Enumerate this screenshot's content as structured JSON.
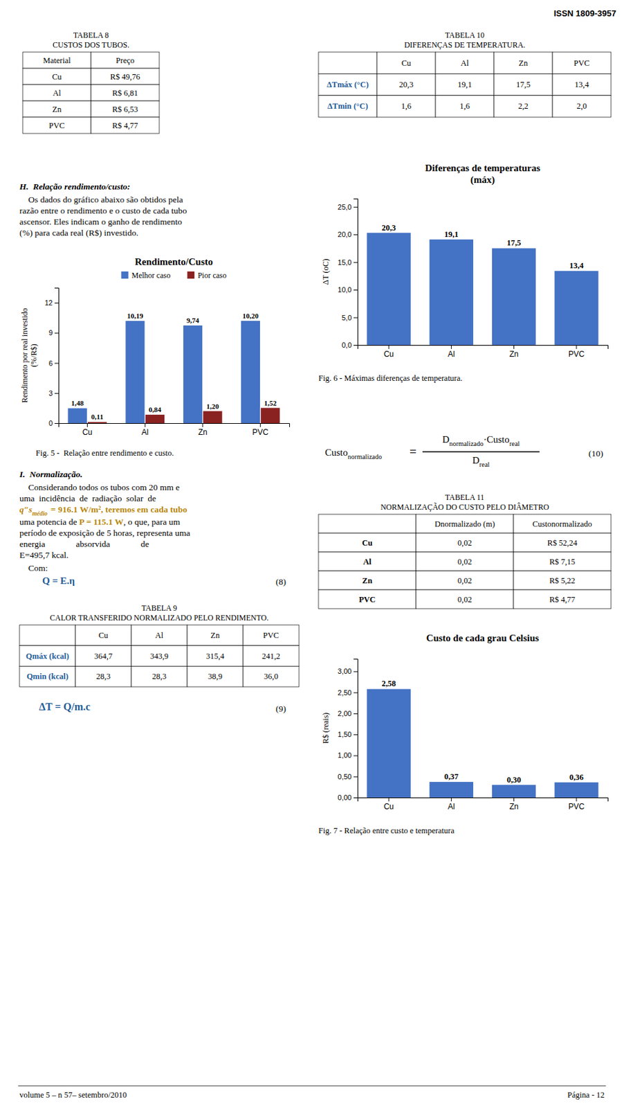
{
  "chart_data": [
    {
      "type": "bar",
      "title": "Rendimento/Custo",
      "categories": [
        "Cu",
        "Al",
        "Zn",
        "PVC"
      ],
      "series": [
        {
          "name": "Melhor caso",
          "color": "#4472C4",
          "values": [
            1.48,
            10.19,
            9.74,
            10.2
          ],
          "value_labels": [
            "1,48",
            "10,19",
            "9,74",
            "10,20"
          ]
        },
        {
          "name": "Pior caso",
          "color": "#8B2222",
          "values": [
            0.11,
            0.84,
            1.2,
            1.52
          ],
          "value_labels": [
            "0,11",
            "0,84",
            "1,20",
            "1,52"
          ]
        }
      ],
      "ylabel": "Rendimento por real investido\n(%/R$)",
      "ylim": [
        0,
        13.5
      ],
      "yticks": [
        0,
        3,
        6,
        9,
        12
      ],
      "data_labels": true,
      "legend": "top",
      "grid": false
    },
    {
      "type": "bar",
      "title": "Diferenças de temperaturas\n(máx)",
      "categories": [
        "Cu",
        "Al",
        "Zn",
        "PVC"
      ],
      "values": [
        20.3,
        19.1,
        17.5,
        13.4
      ],
      "value_labels": [
        "20,3",
        "19,1",
        "17,5",
        "13,4"
      ],
      "color": "#4472C4",
      "ylabel": "ΔT (oC)",
      "ylim": [
        0,
        26.5
      ],
      "yticks": [
        {
          "value": 0,
          "label": "0,0"
        },
        {
          "value": 5,
          "label": "5,0"
        },
        {
          "value": 10,
          "label": "10,0"
        },
        {
          "value": 15,
          "label": "15,0"
        },
        {
          "value": 20,
          "label": "20,0"
        },
        {
          "value": 25,
          "label": "25,0"
        }
      ],
      "data_labels": true,
      "grid": false
    },
    {
      "type": "bar",
      "title": "Custo de cada grau Celsius",
      "categories": [
        "Cu",
        "Al",
        "Zn",
        "PVC"
      ],
      "values": [
        2.58,
        0.37,
        0.3,
        0.36
      ],
      "value_labels": [
        "2,58",
        "0,37",
        "0,30",
        "0,36"
      ],
      "color": "#4472C4",
      "ylabel": "R$ (reais)",
      "ylim": [
        0,
        3.3
      ],
      "yticks": [
        {
          "value": 0,
          "label": "0,00"
        },
        {
          "value": 0.5,
          "label": "0,50"
        },
        {
          "value": 1,
          "label": "1,00"
        },
        {
          "value": 1.5,
          "label": "1,50"
        },
        {
          "value": 2,
          "label": "2,00"
        },
        {
          "value": 2.5,
          "label": "2,50"
        },
        {
          "value": 3,
          "label": "3,00"
        }
      ],
      "data_labels": true,
      "grid": false
    }
  ],
  "page": {
    "issn": "ISSN 1809-3957",
    "tab8": {
      "title": [
        "TABELA 8",
        "CUSTOS DOS TUBOS."
      ],
      "headers": [
        "Material",
        "Preço"
      ],
      "rows": [
        [
          "Cu",
          "R$ 49,76"
        ],
        [
          "Al",
          "R$ 6,81"
        ],
        [
          "Zn",
          "R$ 6,53"
        ],
        [
          "PVC",
          "R$ 4,77"
        ]
      ]
    },
    "section_h": {
      "title": "H.  Relação rendimento/custo:",
      "lines": [
        "    Os dados do gráfico abaixo são obtidos pela",
        "razão entre o rendimento e o custo de cada tubo",
        "ascensor. Eles indicam o ganho de rendimento",
        "(%) para cada real (R$) investido."
      ]
    },
    "fig5": "Fig. 5 -  Relação entre rendimento e custo.",
    "section_i": {
      "title": "I.  Normalização.",
      "lines_before_q": [
        "    Considerando todos os tubos com 20 mm e",
        "uma  incidência  de  radiação  solar  de"
      ],
      "q_prefix": "q″s",
      "q_sub": "médio",
      "q_line": "= 916.1 W/m², teremos em cada tubo",
      "p_before": "uma potencia de ",
      "p_formula": "P = 115.1 W",
      "p_after": ", o que, para um",
      "lines_after_p": [
        "período de exposição de 5 horas, representa uma",
        "energia              absorvida              de",
        "E=495,7 kcal."
      ],
      "com": "    Com:",
      "formula_q": "Q = E.η",
      "eq": "(8)"
    },
    "tab9": {
      "title": [
        "TABELA 9",
        "CALOR TRANSFERIDO NORMALIZADO PELO RENDIMENTO."
      ],
      "headers": [
        null,
        "Cu",
        "Al",
        "Zn",
        "PVC"
      ],
      "rows": [
        [
          "Qmáx (kcal)",
          "364,7",
          "343,9",
          "315,4",
          "241,2"
        ],
        [
          "Qmin (kcal)",
          "28,3",
          "28,3",
          "38,9",
          "36,0"
        ]
      ]
    },
    "delta_t": {
      "formula": "ΔT = Q/m.c",
      "eq": "(9)"
    },
    "tab10": {
      "title": [
        "TABELA 10",
        "DIFERENÇAS DE TEMPERATURA."
      ],
      "headers": [
        null,
        "Cu",
        "Al",
        "Zn",
        "PVC"
      ],
      "rows": [
        [
          "ΔTmáx (°C)",
          "20,3",
          "19,1",
          "17,5",
          "13,4"
        ],
        [
          "ΔTmin (°C)",
          "1,6",
          "1,6",
          "2,2",
          "2,0"
        ]
      ]
    },
    "fig6": "Fig. 6 - Máximas diferenças de temperatura.",
    "custo_formula": {
      "lhs": "Custo",
      "lhs_sub": "normalizado",
      "eq_sign": "=",
      "num_1": "D",
      "num_1_sub": "normalizado",
      "num_2": "·Custo",
      "num_2_sub": "real",
      "den": "D",
      "den_sub": "real",
      "eq": "(10)"
    },
    "tab11": {
      "title": [
        "TABELA 11",
        "NORMALIZAÇÃO DO CUSTO PELO DIÂMETRO"
      ],
      "headers": [
        null,
        "Dnormalizado (m)",
        "Custonormalizado"
      ],
      "rows": [
        [
          "Cu",
          "0,02",
          "R$ 52,24"
        ],
        [
          "Al",
          "0,02",
          "R$ 7,15"
        ],
        [
          "Zn",
          "0,02",
          "R$ 5,22"
        ],
        [
          "PVC",
          "0,02",
          "R$ 4,77"
        ]
      ]
    },
    "fig7": "Fig. 7 - Relação entre custo e temperatura",
    "footer_left": "volume 5 – n 57– setembro/2010",
    "footer_right": "Página - 12"
  }
}
